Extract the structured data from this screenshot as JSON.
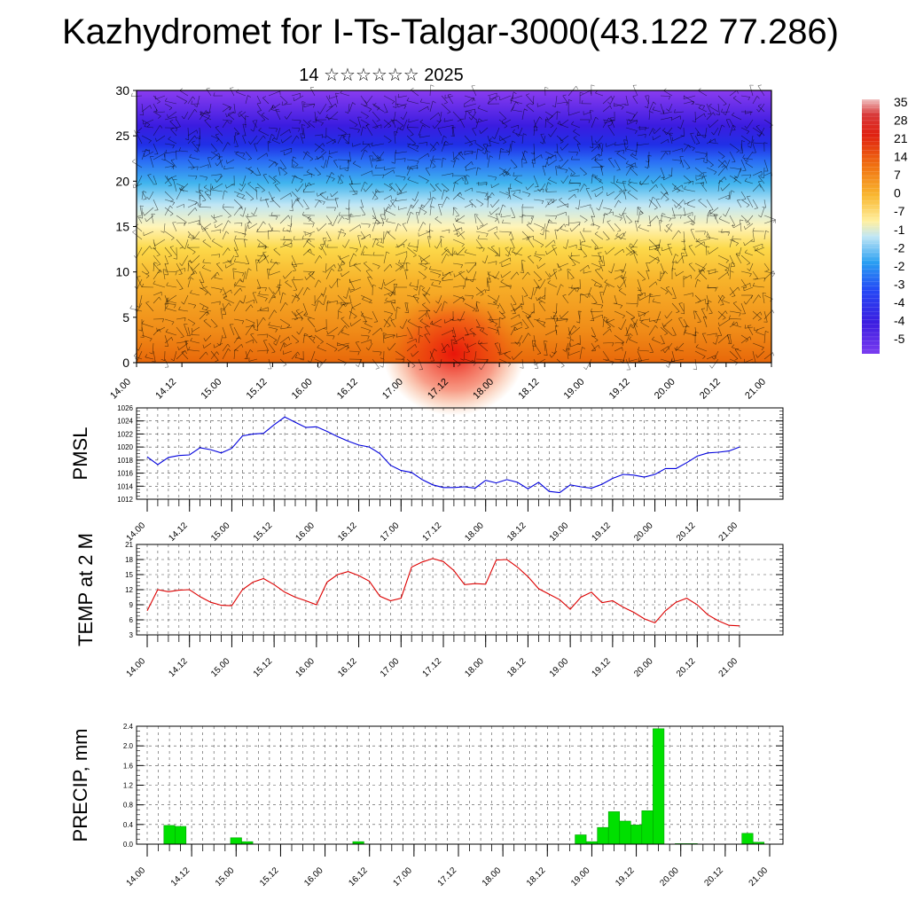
{
  "title": "Kazhydromet for I-Ts-Talgar-3000(43.122 77.286)",
  "subtitle": "14 ☆☆☆☆☆☆ 2025",
  "colors": {
    "pmsl_line": "#0000dd",
    "temp_line": "#dd0000",
    "precip_bar": "#00e000",
    "precip_bar_edge": "#00a000"
  },
  "chart_data": [
    {
      "type": "heatmap",
      "ylabel": "",
      "ylim": [
        0,
        30
      ],
      "yticks": [
        "0",
        "5",
        "10",
        "15",
        "20",
        "25",
        "30"
      ],
      "xticks": [
        "14.00",
        "14.12",
        "15.00",
        "15.12",
        "16.00",
        "16.12",
        "17.00",
        "17.12",
        "18.00",
        "18.12",
        "19.00",
        "19.12",
        "20.00",
        "20.12",
        "21.00"
      ],
      "colorbar_labels": [
        "35",
        "28",
        "21",
        "14",
        "7",
        "0",
        "-7",
        "-1",
        "-2",
        "-2",
        "-3",
        "-4",
        "-4",
        "-5"
      ],
      "overlay": "wind barbs",
      "temperature_by_level": [
        {
          "level": 0,
          "value": 12
        },
        {
          "level": 5,
          "value": 10
        },
        {
          "level": 10,
          "value": 4
        },
        {
          "level": 15,
          "value": -8
        },
        {
          "level": 20,
          "value": -28
        },
        {
          "level": 25,
          "value": -48
        },
        {
          "level": 30,
          "value": -55
        }
      ],
      "peak": {
        "x": "17.12",
        "level": 1,
        "value": 17
      }
    },
    {
      "type": "line",
      "ylabel": "PMSL",
      "ylim": [
        1012,
        1026
      ],
      "yticks": [
        "1012",
        "1014",
        "1016",
        "1018",
        "1020",
        "1022",
        "1024",
        "1026"
      ],
      "xticks": [
        "14.00",
        "14.12",
        "15.00",
        "15.12",
        "16.00",
        "16.12",
        "17.00",
        "17.12",
        "18.00",
        "18.12",
        "19.00",
        "19.12",
        "20.00",
        "20.12",
        "21.00"
      ],
      "grid": true,
      "series": [
        {
          "values": [
            1018.5,
            1017.3,
            1018.4,
            1018.7,
            1018.8,
            1019.9,
            1019.6,
            1019.1,
            1019.8,
            1021.7,
            1022.0,
            1022.1,
            1023.4,
            1024.6,
            1023.8,
            1023.0,
            1023.1,
            1022.4,
            1021.6,
            1020.9,
            1020.3,
            1020.0,
            1019.0,
            1017.2,
            1016.4,
            1016.1,
            1015.0,
            1014.2,
            1013.8,
            1013.8,
            1013.9,
            1013.7,
            1014.9,
            1014.5,
            1015.0,
            1014.6,
            1013.6,
            1014.6,
            1013.2,
            1013.0,
            1014.2,
            1013.9,
            1013.7,
            1014.3,
            1015.2,
            1015.8,
            1015.7,
            1015.4,
            1015.8,
            1016.7,
            1016.7,
            1017.6,
            1018.6,
            1019.1,
            1019.2,
            1019.4,
            1020.0
          ]
        }
      ]
    },
    {
      "type": "line",
      "ylabel": "TEMP at 2 M",
      "ylim": [
        3,
        21
      ],
      "yticks": [
        "3",
        "6",
        "9",
        "12",
        "15",
        "18",
        "21"
      ],
      "xticks": [
        "14.00",
        "14.12",
        "15.00",
        "15.12",
        "16.00",
        "16.12",
        "17.00",
        "17.12",
        "18.00",
        "18.12",
        "19.00",
        "19.12",
        "20.00",
        "20.12",
        "21.00"
      ],
      "grid": true,
      "series": [
        {
          "values": [
            7.8,
            12.0,
            11.6,
            11.9,
            12.0,
            10.6,
            9.5,
            8.9,
            8.8,
            12.0,
            13.5,
            14.2,
            13.0,
            11.5,
            10.5,
            9.8,
            9.0,
            13.5,
            15.0,
            15.6,
            14.8,
            13.7,
            10.7,
            9.8,
            10.3,
            16.5,
            17.5,
            18.2,
            17.6,
            15.8,
            13.0,
            13.2,
            13.1,
            17.9,
            18.0,
            16.5,
            14.6,
            12.2,
            11.1,
            10.0,
            8.1,
            10.5,
            11.5,
            9.4,
            9.8,
            8.5,
            7.5,
            6.2,
            5.4,
            7.8,
            9.5,
            10.3,
            9.0,
            7.0,
            5.8,
            4.9,
            4.8
          ]
        }
      ]
    },
    {
      "type": "bar",
      "ylabel": "PRECIP, mm",
      "ylim": [
        0,
        2.4
      ],
      "yticks": [
        "0.0",
        "0.4",
        "0.8",
        "1.2",
        "1.6",
        "2.0",
        "2.4"
      ],
      "xticks": [
        "14.00",
        "14.12",
        "15.00",
        "15.12",
        "16.00",
        "16.12",
        "17.00",
        "17.12",
        "18.00",
        "18.12",
        "19.00",
        "19.12",
        "20.00",
        "20.12",
        "21.00"
      ],
      "grid": true,
      "series": [
        {
          "values": [
            0,
            0,
            0.38,
            0.36,
            0,
            0,
            0,
            0,
            0.13,
            0.05,
            0,
            0,
            0,
            0,
            0,
            0,
            0,
            0,
            0,
            0.05,
            0,
            0,
            0,
            0,
            0,
            0,
            0,
            0,
            0,
            0,
            0,
            0,
            0,
            0,
            0,
            0,
            0,
            0,
            0,
            0.19,
            0.05,
            0.34,
            0.66,
            0.47,
            0.39,
            0.68,
            2.35,
            0,
            0.01,
            0.01,
            0,
            0,
            0,
            0,
            0.22,
            0.04,
            0
          ]
        }
      ]
    }
  ]
}
